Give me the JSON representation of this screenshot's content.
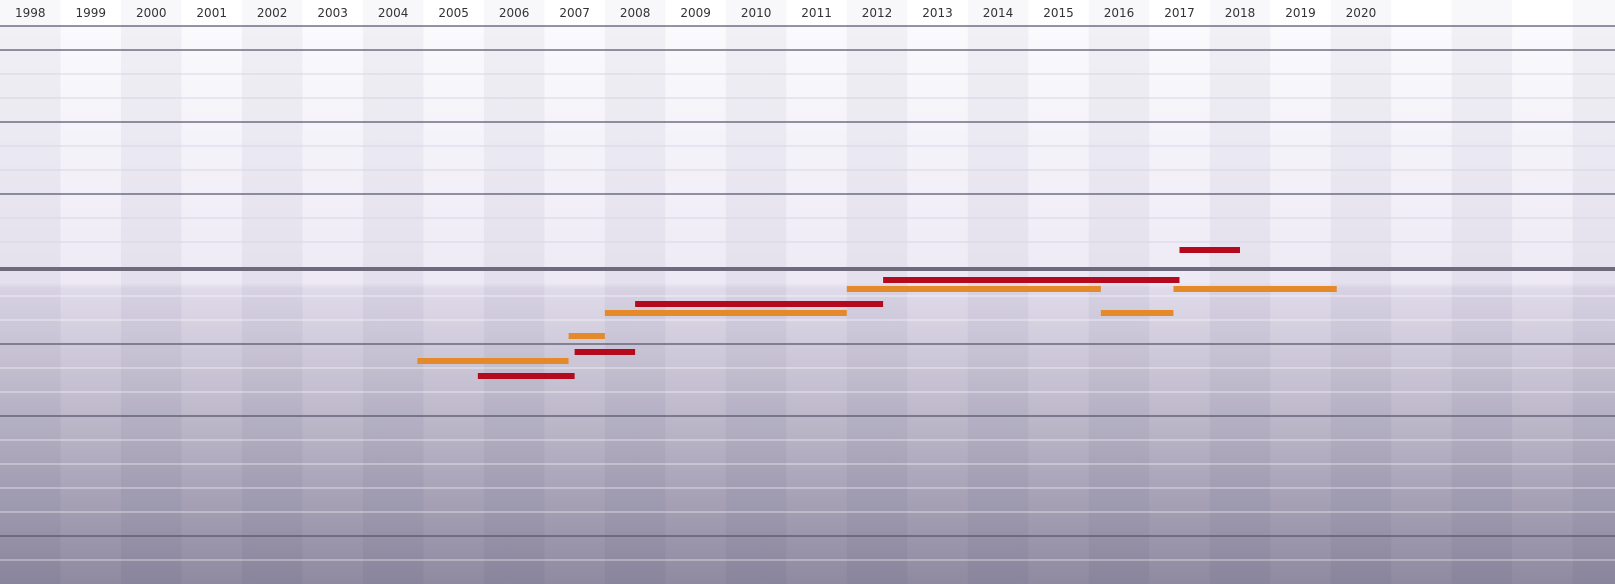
{
  "chart_data": {
    "type": "timeline",
    "title": "",
    "xlabel": "",
    "ylabel": "",
    "years": [
      "1998",
      "1999",
      "2000",
      "2001",
      "2002",
      "2003",
      "2004",
      "2005",
      "2006",
      "2007",
      "2008",
      "2009",
      "2010",
      "2011",
      "2012",
      "2013",
      "2014",
      "2015",
      "2016",
      "2017",
      "2018",
      "2019",
      "2020"
    ],
    "x_range": [
      1997.5,
      2024.2
    ],
    "grid": true,
    "series_colors": {
      "red": "#b5091e",
      "orange": "#e48a2a"
    },
    "bars": [
      {
        "color": "red",
        "start": 2017.0,
        "end": 2018.0,
        "row": 0
      },
      {
        "color": "red",
        "start": 2012.1,
        "end": 2017.0,
        "row": 1
      },
      {
        "color": "orange",
        "start": 2011.5,
        "end": 2015.7,
        "row": 2
      },
      {
        "color": "orange",
        "start": 2016.9,
        "end": 2019.6,
        "row": 3
      },
      {
        "color": "red",
        "start": 2008.0,
        "end": 2012.1,
        "row": 4
      },
      {
        "color": "orange",
        "start": 2007.5,
        "end": 2011.5,
        "row": 5
      },
      {
        "color": "orange",
        "start": 2015.7,
        "end": 2016.9,
        "row": 6
      },
      {
        "color": "orange",
        "start": 2006.9,
        "end": 2007.5,
        "row": 7
      },
      {
        "color": "red",
        "start": 2007.0,
        "end": 2008.0,
        "row": 8
      },
      {
        "color": "orange",
        "start": 2004.4,
        "end": 2006.9,
        "row": 9
      },
      {
        "color": "red",
        "start": 2005.4,
        "end": 2007.0,
        "row": 10
      }
    ]
  }
}
